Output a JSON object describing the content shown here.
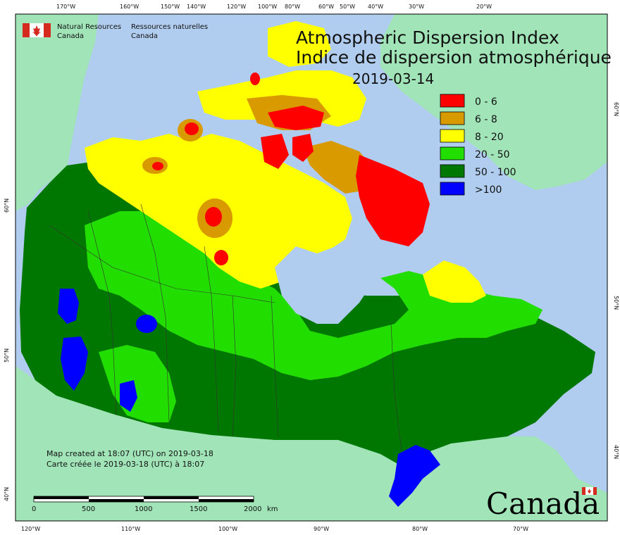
{
  "title": {
    "line1": "Atmospheric Dispersion Index",
    "line2": "Indice de dispersion atmosphérique",
    "date": "2019-03-14"
  },
  "agency": {
    "en_line1": "Natural Resources",
    "en_line2": "Canada",
    "fr_line1": "Ressources naturelles",
    "fr_line2": "Canada"
  },
  "wordmark": "Canada",
  "legend": [
    {
      "label": "0 - 6",
      "color": "#ff0000"
    },
    {
      "label": "6 - 8",
      "color": "#d99a00"
    },
    {
      "label": "8 - 20",
      "color": "#ffff00"
    },
    {
      "label": "20 - 50",
      "color": "#22dd00"
    },
    {
      "label": "50 - 100",
      "color": "#007700"
    },
    {
      "label": ">100",
      "color": "#0000ff"
    }
  ],
  "notes": {
    "created_en": "Map created at 18:07 (UTC) on 2019-03-18",
    "created_fr": "Carte créée le 2019-03-18 (UTC) à 18:07"
  },
  "scale_bar": {
    "labels": [
      "0",
      "500",
      "1000",
      "1500",
      "2000"
    ],
    "unit": "km"
  },
  "top_ticks": [
    "170°W",
    "160°W",
    "150°W",
    "140°W",
    "120°W",
    "100°W",
    "80°W",
    "60°W",
    "50°W",
    "40°W",
    "30°W",
    "20°W"
  ],
  "bottom_ticks": [
    "120°W",
    "110°W",
    "100°W",
    "90°W",
    "80°W",
    "70°W"
  ],
  "left_ticks": [
    "60°N",
    "50°N",
    "40°N"
  ],
  "right_ticks": [
    "60°N",
    "50°N",
    "40°N"
  ],
  "colors": {
    "ocean": "#b0ccee",
    "land_other": "#a0e4b8",
    "frame": "#000000"
  }
}
